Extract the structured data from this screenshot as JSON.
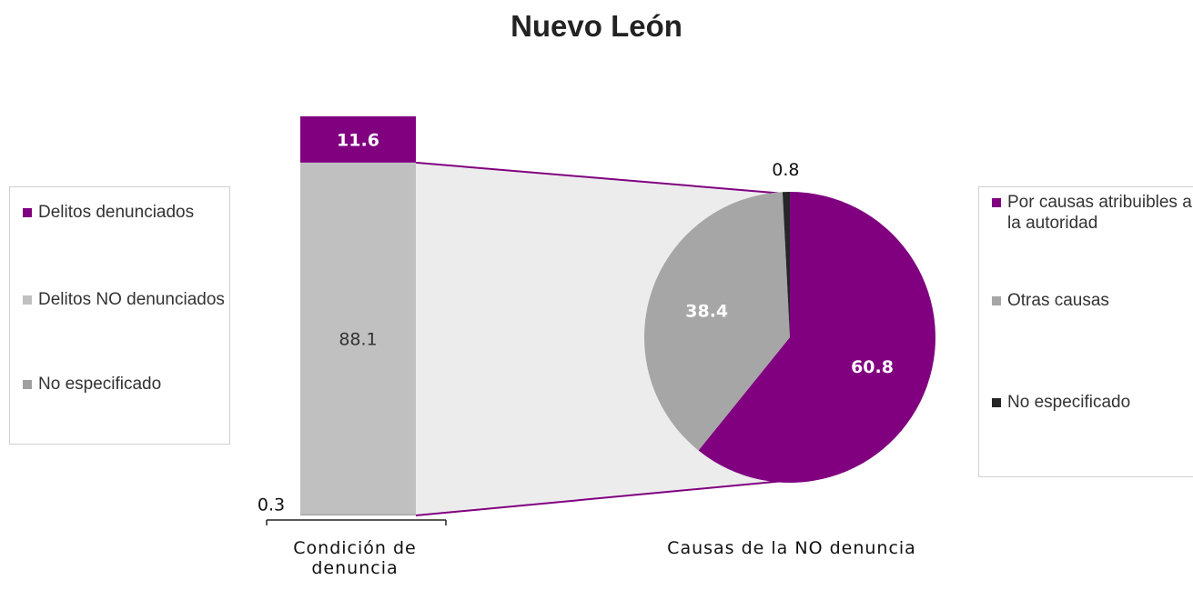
{
  "chart_data": [
    {
      "type": "bar",
      "title": "Nuevo León",
      "categories": [
        "Condición de denuncia"
      ],
      "series": [
        {
          "name": "Delitos denunciados",
          "color": "#800080",
          "values": [
            11.6
          ]
        },
        {
          "name": "Delitos NO denunciados",
          "color": "#c0c0c0",
          "values": [
            88.1
          ]
        },
        {
          "name": "No especificado",
          "color": "#a0a0a0",
          "values": [
            0.3
          ]
        }
      ]
    },
    {
      "type": "pie",
      "label": "Causas de la NO denuncia",
      "categories": [
        "Por causas atribuibles a la autoridad",
        "Otras causas",
        "No especificado"
      ],
      "values": [
        60.8,
        38.4,
        0.8
      ],
      "colors": [
        "#800080",
        "#a6a6a6",
        "#262626"
      ]
    }
  ]
}
